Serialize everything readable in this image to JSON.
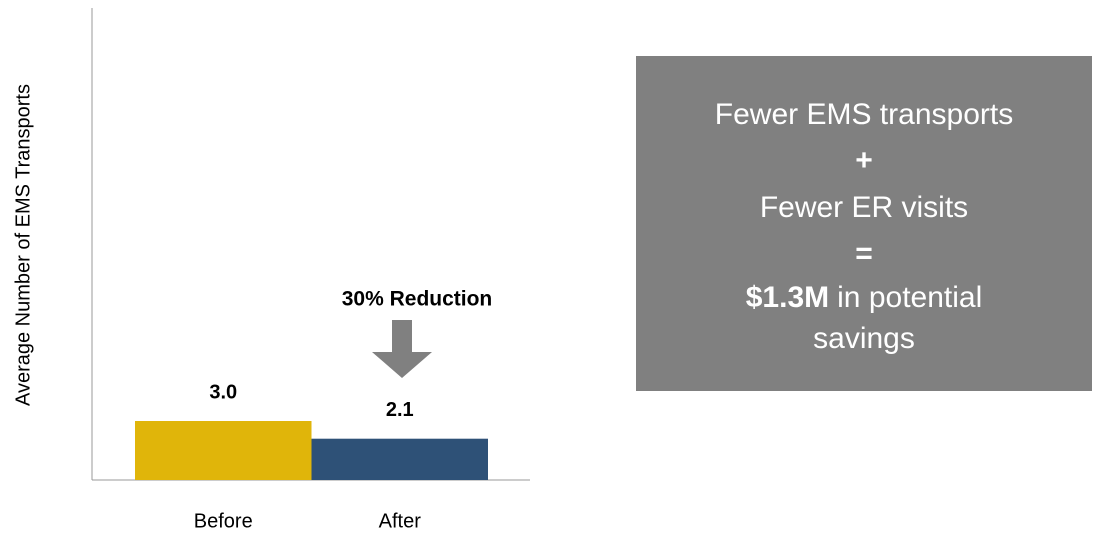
{
  "chart_data": {
    "type": "bar",
    "y_label": "Average Number of EMS Transports",
    "categories": [
      "Before",
      "After"
    ],
    "values": [
      3.0,
      2.1
    ],
    "value_labels": [
      "3.0",
      "2.1"
    ],
    "colors": [
      "#e0b50a",
      "#2e5177"
    ],
    "ylim": [
      0,
      24
    ],
    "annotation": "30% Reduction"
  },
  "callout": {
    "line1": "Fewer EMS transports",
    "op1": "+",
    "line2": "Fewer ER visits",
    "op2": "=",
    "amount": "$1.3M",
    "rest": "in potential savings"
  }
}
